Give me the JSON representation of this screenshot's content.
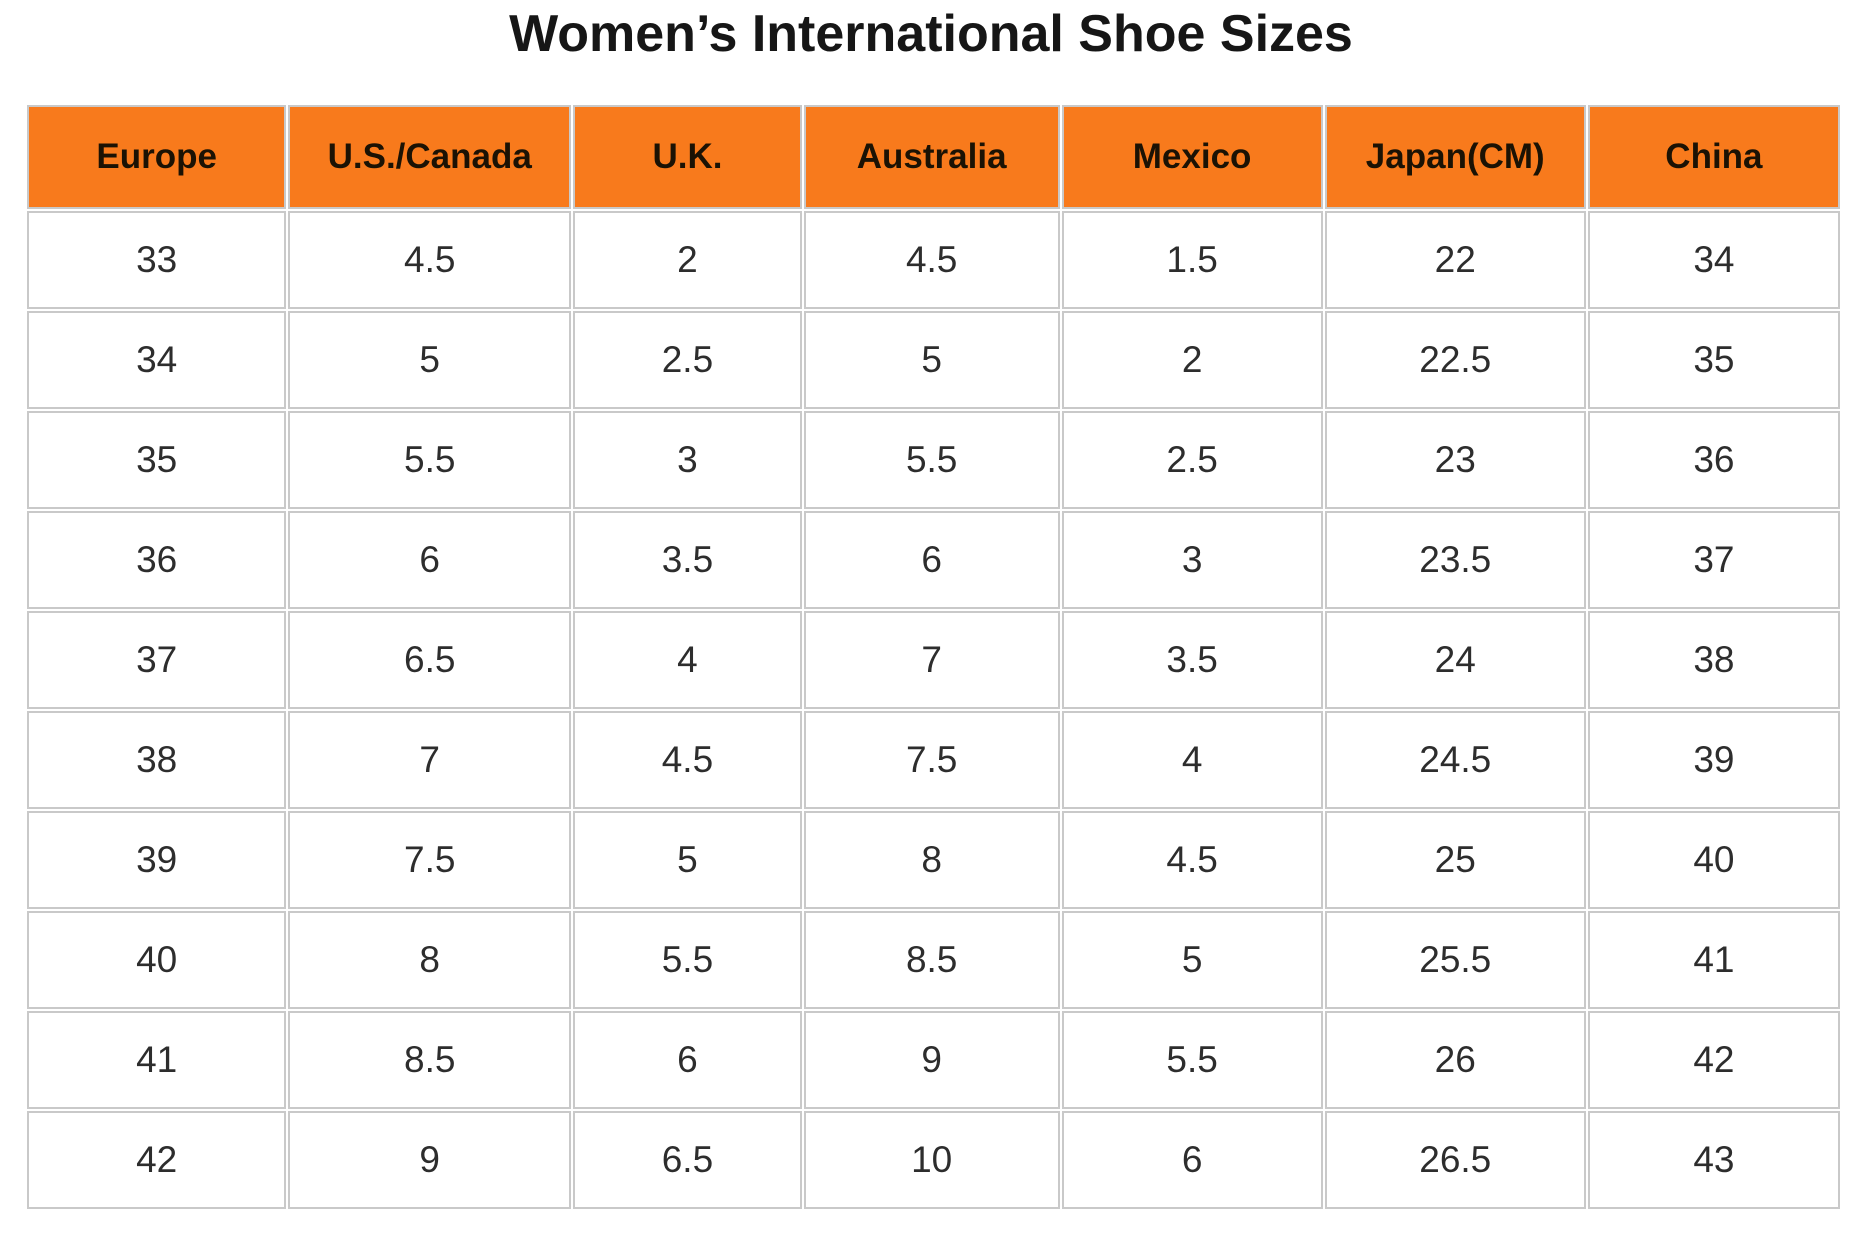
{
  "title": "Women’s International Shoe Sizes",
  "colors": {
    "header_bg": "#F87A1C",
    "header_text": "#1B1204",
    "cell_text": "#2D2D2D",
    "border": "#C9C9C9",
    "page_bg": "#FFFFFF"
  },
  "chart_data": {
    "type": "table",
    "title": "Women’s International Shoe Sizes",
    "columns": [
      "Europe",
      "U.S./Canada",
      "U.K.",
      "Australia",
      "Mexico",
      "Japan(CM)",
      "China"
    ],
    "rows": [
      [
        "33",
        "4.5",
        "2",
        "4.5",
        "1.5",
        "22",
        "34"
      ],
      [
        "34",
        "5",
        "2.5",
        "5",
        "2",
        "22.5",
        "35"
      ],
      [
        "35",
        "5.5",
        "3",
        "5.5",
        "2.5",
        "23",
        "36"
      ],
      [
        "36",
        "6",
        "3.5",
        "6",
        "3",
        "23.5",
        "37"
      ],
      [
        "37",
        "6.5",
        "4",
        "7",
        "3.5",
        "24",
        "38"
      ],
      [
        "38",
        "7",
        "4.5",
        "7.5",
        "4",
        "24.5",
        "39"
      ],
      [
        "39",
        "7.5",
        "5",
        "8",
        "4.5",
        "25",
        "40"
      ],
      [
        "40",
        "8",
        "5.5",
        "8.5",
        "5",
        "25.5",
        "41"
      ],
      [
        "41",
        "8.5",
        "6",
        "9",
        "5.5",
        "26",
        "42"
      ],
      [
        "42",
        "9",
        "6.5",
        "10",
        "6",
        "26.5",
        "43"
      ]
    ]
  }
}
